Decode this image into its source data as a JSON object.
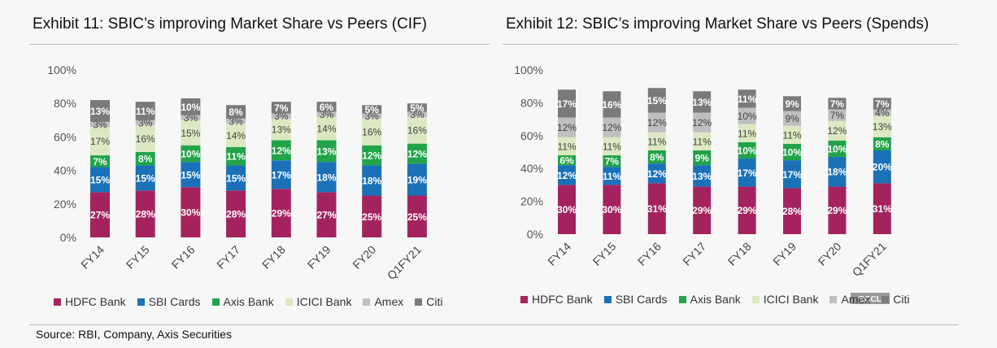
{
  "colors": {
    "HDFC Bank": "#a4235f",
    "SBI Cards": "#1a71b8",
    "Axis Bank": "#22a349",
    "ICICI Bank": "#dbe8c1",
    "Amex": "#bfbfbf",
    "Citi": "#7a7a7a"
  },
  "titles": {
    "left": "Exhibit 11: SBIC’s improving Market Share vs Peers (CIF)",
    "right": "Exhibit 12: SBIC’s improving Market Share vs Peers (Spends)"
  },
  "legend": [
    "HDFC Bank",
    "SBI Cards",
    "Axis Bank",
    "ICICI Bank",
    "Amex",
    "Citi"
  ],
  "watermark": "BCCL",
  "source": "Source: RBI, Company, Axis Securities",
  "chart_data": [
    {
      "type": "bar",
      "stacked": true,
      "title": "Exhibit 11: SBIC’s improving Market Share vs Peers (CIF)",
      "categories": [
        "FY14",
        "FY15",
        "FY16",
        "FY17",
        "FY18",
        "FY19",
        "FY20",
        "Q1FY21"
      ],
      "yticks": [
        "0%",
        "20%",
        "40%",
        "60%",
        "80%",
        "100%"
      ],
      "ylim": [
        0,
        100
      ],
      "legend_position": "bottom",
      "series": [
        {
          "name": "HDFC Bank",
          "values": [
            27,
            28,
            30,
            28,
            29,
            27,
            25,
            25
          ]
        },
        {
          "name": "SBI Cards",
          "values": [
            15,
            15,
            15,
            15,
            17,
            18,
            18,
            19
          ]
        },
        {
          "name": "Axis Bank",
          "values": [
            7,
            8,
            10,
            11,
            12,
            13,
            12,
            12
          ]
        },
        {
          "name": "ICICI Bank",
          "values": [
            17,
            16,
            15,
            14,
            13,
            14,
            16,
            16
          ]
        },
        {
          "name": "Amex",
          "values": [
            3,
            3,
            3,
            3,
            3,
            3,
            3,
            3
          ]
        },
        {
          "name": "Citi",
          "values": [
            13,
            11,
            10,
            8,
            7,
            6,
            5,
            5
          ]
        }
      ]
    },
    {
      "type": "bar",
      "stacked": true,
      "title": "Exhibit 12: SBIC’s improving Market Share vs Peers (Spends)",
      "categories": [
        "FY14",
        "FY15",
        "FY16",
        "FY17",
        "FY18",
        "FY19",
        "FY20",
        "Q1FY21"
      ],
      "yticks": [
        "0%",
        "20%",
        "40%",
        "60%",
        "80%",
        "100%"
      ],
      "ylim": [
        0,
        100
      ],
      "legend_position": "bottom",
      "series": [
        {
          "name": "HDFC Bank",
          "values": [
            30,
            30,
            31,
            29,
            29,
            28,
            29,
            31
          ]
        },
        {
          "name": "SBI Cards",
          "values": [
            12,
            11,
            12,
            13,
            17,
            17,
            18,
            20
          ]
        },
        {
          "name": "Axis Bank",
          "values": [
            6,
            7,
            8,
            9,
            10,
            10,
            10,
            8
          ]
        },
        {
          "name": "ICICI Bank",
          "values": [
            11,
            11,
            11,
            11,
            11,
            11,
            12,
            13
          ]
        },
        {
          "name": "Amex",
          "values": [
            12,
            12,
            12,
            12,
            10,
            9,
            7,
            4
          ]
        },
        {
          "name": "Citi",
          "values": [
            17,
            16,
            15,
            13,
            11,
            9,
            7,
            7
          ]
        }
      ]
    }
  ]
}
